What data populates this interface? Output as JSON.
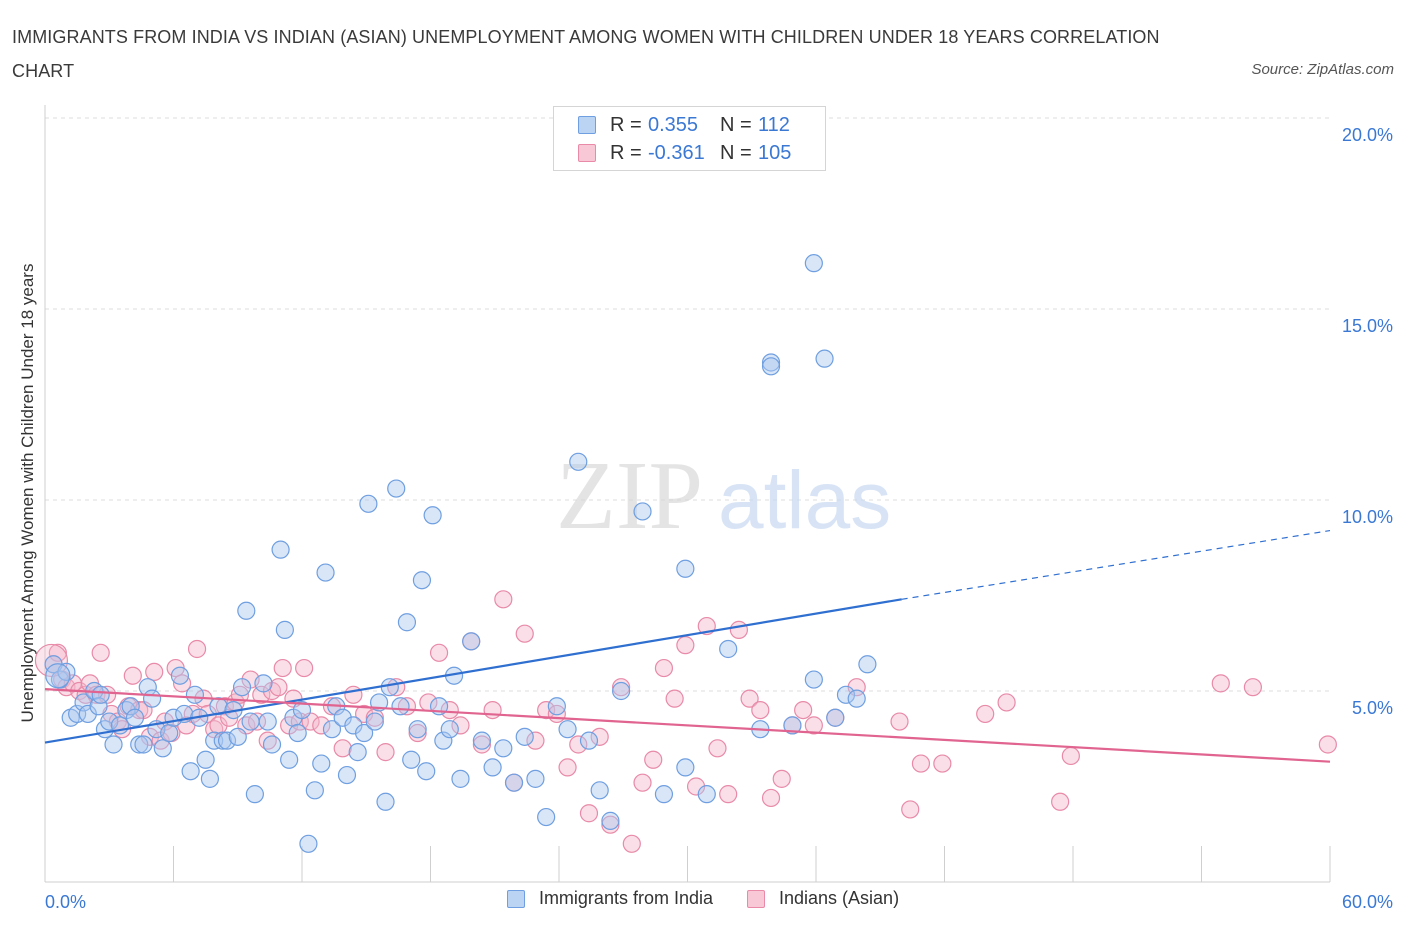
{
  "title": "IMMIGRANTS FROM INDIA VS INDIAN (ASIAN) UNEMPLOYMENT AMONG WOMEN WITH CHILDREN UNDER 18 YEARS CORRELATION CHART",
  "source": "Source: ZipAtlas.com",
  "watermark": {
    "zip": "ZIP",
    "atlas": "atlas"
  },
  "colors": {
    "blue_point": "#aac8f0",
    "blue_edge": "#6f9fe0",
    "blue_line": "#2f6fd0",
    "pink_point": "#f5b8cb",
    "pink_edge": "#e88aa8",
    "pink_line": "#e0648f",
    "axis_text": "#3a78d4",
    "grid": "#dcdcdc"
  },
  "legend": {
    "rows": [
      {
        "r_label": "R =",
        "r_value": "0.355",
        "n_label": "N =",
        "n_value": "112"
      },
      {
        "r_label": "R =",
        "r_value": "-0.361",
        "n_label": "N =",
        "n_value": "105"
      }
    ]
  },
  "chart_data": {
    "type": "scatter",
    "title": "IMMIGRANTS FROM INDIA VS INDIAN (ASIAN) UNEMPLOYMENT AMONG WOMEN WITH CHILDREN UNDER 18 YEARS CORRELATION CHART",
    "xlabel": "",
    "ylabel": "Unemployment Among Women with Children Under 18 years",
    "xlim": [
      0,
      60
    ],
    "ylim": [
      0,
      20
    ],
    "x_tick_labels": [
      "0.0%",
      "60.0%"
    ],
    "y_tick_labels": [
      "5.0%",
      "10.0%",
      "15.0%",
      "20.0%"
    ],
    "y_ticks": [
      5,
      10,
      15,
      20
    ],
    "grid": "horizontal dashed",
    "legend_position": "top-center",
    "series": [
      {
        "name": "Immigrants from India",
        "r": 0.355,
        "n": 112,
        "trend": {
          "x0": 0,
          "y0": 3.65,
          "x1": 40,
          "y1": 7.4,
          "dash_x1": 60,
          "dash_y1": 9.2
        },
        "points": [
          [
            0.4,
            5.7
          ],
          [
            0.7,
            5.3
          ],
          [
            1.0,
            5.5
          ],
          [
            1.2,
            4.3
          ],
          [
            1.5,
            4.4
          ],
          [
            1.8,
            4.7
          ],
          [
            2.0,
            4.4
          ],
          [
            2.3,
            5.0
          ],
          [
            2.5,
            4.6
          ],
          [
            2.6,
            4.9
          ],
          [
            2.8,
            4.0
          ],
          [
            3.0,
            4.2
          ],
          [
            3.2,
            3.6
          ],
          [
            3.5,
            4.1
          ],
          [
            3.8,
            4.5
          ],
          [
            4.0,
            4.6
          ],
          [
            4.2,
            4.3
          ],
          [
            4.4,
            3.6
          ],
          [
            4.6,
            3.6
          ],
          [
            4.8,
            5.1
          ],
          [
            5.0,
            4.8
          ],
          [
            5.2,
            4.0
          ],
          [
            5.5,
            3.5
          ],
          [
            5.8,
            3.9
          ],
          [
            6.0,
            4.3
          ],
          [
            6.3,
            5.4
          ],
          [
            6.5,
            4.4
          ],
          [
            6.8,
            2.9
          ],
          [
            7.0,
            4.9
          ],
          [
            7.2,
            4.3
          ],
          [
            7.5,
            3.2
          ],
          [
            7.7,
            2.7
          ],
          [
            7.9,
            3.7
          ],
          [
            8.1,
            4.6
          ],
          [
            8.3,
            3.7
          ],
          [
            8.5,
            3.7
          ],
          [
            8.8,
            4.5
          ],
          [
            9.0,
            3.8
          ],
          [
            9.2,
            5.1
          ],
          [
            9.4,
            7.1
          ],
          [
            9.6,
            4.2
          ],
          [
            9.8,
            2.3
          ],
          [
            10.2,
            5.2
          ],
          [
            10.4,
            4.2
          ],
          [
            10.6,
            3.6
          ],
          [
            11.0,
            8.7
          ],
          [
            11.2,
            6.6
          ],
          [
            11.4,
            3.2
          ],
          [
            11.6,
            4.3
          ],
          [
            11.8,
            3.9
          ],
          [
            12.0,
            4.5
          ],
          [
            12.3,
            1.0
          ],
          [
            12.6,
            2.4
          ],
          [
            12.9,
            3.1
          ],
          [
            13.1,
            8.1
          ],
          [
            13.4,
            4.0
          ],
          [
            13.6,
            4.6
          ],
          [
            13.9,
            4.3
          ],
          [
            14.1,
            2.8
          ],
          [
            14.4,
            4.1
          ],
          [
            14.6,
            3.4
          ],
          [
            14.9,
            3.9
          ],
          [
            15.1,
            9.9
          ],
          [
            15.4,
            4.2
          ],
          [
            15.6,
            4.7
          ],
          [
            15.9,
            2.1
          ],
          [
            16.1,
            5.1
          ],
          [
            16.4,
            10.3
          ],
          [
            16.6,
            4.6
          ],
          [
            16.9,
            6.8
          ],
          [
            17.1,
            3.2
          ],
          [
            17.4,
            4.0
          ],
          [
            17.6,
            7.9
          ],
          [
            17.8,
            2.9
          ],
          [
            18.1,
            9.6
          ],
          [
            18.4,
            4.6
          ],
          [
            18.6,
            3.7
          ],
          [
            18.9,
            4.0
          ],
          [
            19.1,
            5.4
          ],
          [
            19.4,
            2.7
          ],
          [
            19.9,
            6.3
          ],
          [
            20.4,
            3.7
          ],
          [
            20.9,
            3.0
          ],
          [
            21.4,
            3.5
          ],
          [
            21.9,
            2.6
          ],
          [
            22.4,
            3.8
          ],
          [
            22.9,
            2.7
          ],
          [
            23.4,
            1.7
          ],
          [
            23.9,
            4.6
          ],
          [
            24.4,
            4.0
          ],
          [
            24.9,
            11.0
          ],
          [
            25.4,
            3.7
          ],
          [
            25.9,
            2.4
          ],
          [
            26.4,
            1.6
          ],
          [
            26.9,
            5.0
          ],
          [
            27.9,
            9.7
          ],
          [
            28.9,
            2.3
          ],
          [
            29.9,
            8.2
          ],
          [
            30.9,
            2.3
          ],
          [
            29.9,
            3.0
          ],
          [
            31.9,
            6.1
          ],
          [
            34.9,
            4.1
          ],
          [
            33.4,
            4.0
          ],
          [
            37.4,
            4.9
          ],
          [
            35.9,
            5.3
          ],
          [
            36.9,
            4.3
          ],
          [
            37.9,
            4.8
          ],
          [
            33.9,
            13.6
          ],
          [
            35.9,
            16.2
          ],
          [
            36.4,
            13.7
          ],
          [
            33.9,
            13.5
          ],
          [
            38.4,
            5.7
          ]
        ]
      },
      {
        "name": "Indians (Asian)",
        "r": -0.361,
        "n": 105,
        "trend": {
          "x0": 0,
          "y0": 5.05,
          "x1": 60,
          "y1": 3.15
        },
        "points": [
          [
            0.4,
            5.7
          ],
          [
            0.6,
            6.0
          ],
          [
            0.8,
            5.3
          ],
          [
            1.0,
            5.1
          ],
          [
            1.3,
            5.2
          ],
          [
            1.6,
            5.0
          ],
          [
            1.9,
            4.9
          ],
          [
            2.1,
            5.2
          ],
          [
            2.4,
            4.9
          ],
          [
            2.6,
            6.0
          ],
          [
            2.9,
            4.9
          ],
          [
            3.1,
            4.4
          ],
          [
            3.4,
            4.2
          ],
          [
            3.6,
            4.0
          ],
          [
            3.9,
            4.6
          ],
          [
            4.1,
            5.4
          ],
          [
            4.4,
            4.5
          ],
          [
            4.6,
            4.5
          ],
          [
            4.9,
            3.8
          ],
          [
            5.1,
            5.5
          ],
          [
            5.4,
            3.7
          ],
          [
            5.6,
            4.2
          ],
          [
            5.9,
            3.9
          ],
          [
            6.1,
            5.6
          ],
          [
            6.4,
            5.2
          ],
          [
            6.6,
            4.1
          ],
          [
            6.9,
            4.4
          ],
          [
            7.1,
            6.1
          ],
          [
            7.4,
            4.8
          ],
          [
            7.6,
            4.4
          ],
          [
            7.9,
            4.0
          ],
          [
            8.1,
            4.1
          ],
          [
            8.4,
            4.6
          ],
          [
            8.6,
            4.3
          ],
          [
            8.9,
            4.7
          ],
          [
            9.1,
            4.9
          ],
          [
            9.4,
            4.1
          ],
          [
            9.6,
            5.3
          ],
          [
            9.9,
            4.2
          ],
          [
            10.1,
            4.9
          ],
          [
            10.4,
            3.7
          ],
          [
            10.6,
            5.0
          ],
          [
            10.9,
            5.1
          ],
          [
            11.1,
            5.6
          ],
          [
            11.4,
            4.1
          ],
          [
            11.6,
            4.8
          ],
          [
            11.9,
            4.2
          ],
          [
            12.1,
            5.6
          ],
          [
            12.4,
            4.2
          ],
          [
            12.9,
            4.1
          ],
          [
            13.4,
            4.6
          ],
          [
            13.9,
            3.5
          ],
          [
            14.4,
            4.9
          ],
          [
            14.9,
            4.4
          ],
          [
            15.4,
            4.3
          ],
          [
            15.9,
            3.4
          ],
          [
            16.4,
            5.1
          ],
          [
            16.9,
            4.6
          ],
          [
            17.4,
            3.9
          ],
          [
            17.9,
            4.7
          ],
          [
            18.4,
            6.0
          ],
          [
            18.9,
            4.5
          ],
          [
            19.4,
            4.1
          ],
          [
            19.9,
            6.3
          ],
          [
            20.4,
            3.6
          ],
          [
            20.9,
            4.5
          ],
          [
            21.4,
            7.4
          ],
          [
            21.9,
            2.6
          ],
          [
            22.4,
            6.5
          ],
          [
            22.9,
            3.7
          ],
          [
            23.4,
            4.5
          ],
          [
            23.9,
            4.4
          ],
          [
            24.4,
            3.0
          ],
          [
            24.9,
            3.6
          ],
          [
            25.4,
            1.8
          ],
          [
            25.9,
            3.8
          ],
          [
            26.4,
            1.5
          ],
          [
            26.9,
            5.1
          ],
          [
            27.4,
            1.0
          ],
          [
            27.9,
            2.6
          ],
          [
            28.4,
            3.2
          ],
          [
            28.9,
            5.6
          ],
          [
            29.4,
            4.8
          ],
          [
            29.9,
            6.2
          ],
          [
            30.4,
            2.5
          ],
          [
            30.9,
            6.7
          ],
          [
            31.4,
            3.5
          ],
          [
            31.9,
            2.3
          ],
          [
            32.4,
            6.6
          ],
          [
            32.9,
            4.8
          ],
          [
            33.4,
            4.5
          ],
          [
            33.9,
            2.2
          ],
          [
            34.4,
            2.7
          ],
          [
            34.9,
            4.1
          ],
          [
            35.4,
            4.5
          ],
          [
            35.9,
            4.1
          ],
          [
            36.9,
            4.3
          ],
          [
            37.9,
            5.1
          ],
          [
            39.9,
            4.2
          ],
          [
            40.9,
            3.1
          ],
          [
            41.9,
            3.1
          ],
          [
            43.9,
            4.4
          ],
          [
            44.9,
            4.7
          ],
          [
            47.9,
            3.3
          ],
          [
            47.4,
            2.1
          ],
          [
            54.9,
            5.2
          ],
          [
            56.4,
            5.1
          ],
          [
            59.9,
            3.6
          ],
          [
            40.4,
            1.9
          ]
        ]
      }
    ]
  },
  "bottom_legend": [
    {
      "label": "Immigrants from India"
    },
    {
      "label": "Indians (Asian)"
    }
  ]
}
